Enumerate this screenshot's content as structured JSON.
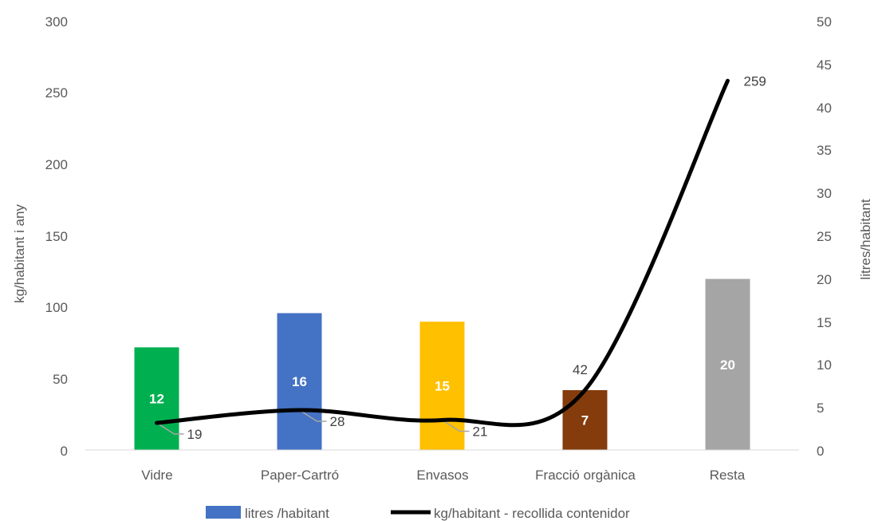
{
  "chart_data": {
    "type": "bar",
    "categories": [
      "Vidre",
      "Paper-Cartró",
      "Envasos",
      "Fracció orgànica",
      "Resta"
    ],
    "y_left": {
      "label": "kg/habitant i any",
      "range": [
        0,
        300
      ],
      "ticks": [
        0,
        50,
        100,
        150,
        200,
        250,
        300
      ]
    },
    "y_right": {
      "label": "litres/habitant",
      "range": [
        0,
        50
      ],
      "ticks": [
        0,
        5,
        10,
        15,
        20,
        25,
        30,
        35,
        40,
        45,
        50
      ]
    },
    "series": [
      {
        "name": "litres /habitant",
        "type": "bar",
        "axis": "right",
        "values": [
          12,
          16,
          15,
          7,
          20
        ],
        "labels": [
          "12",
          "16",
          "15",
          "7",
          "20"
        ],
        "colors": [
          "#00b050",
          "#4472c4",
          "#ffc000",
          "#843c0c",
          "#a5a5a5"
        ]
      },
      {
        "name": "kg/habitant - recollida contenidor",
        "type": "line",
        "axis": "left",
        "values": [
          19,
          28,
          21,
          42,
          259
        ],
        "labels": [
          "19",
          "28",
          "21",
          "42",
          "259"
        ],
        "color": "#000000"
      }
    ],
    "grid": false,
    "legend": "bottom"
  }
}
